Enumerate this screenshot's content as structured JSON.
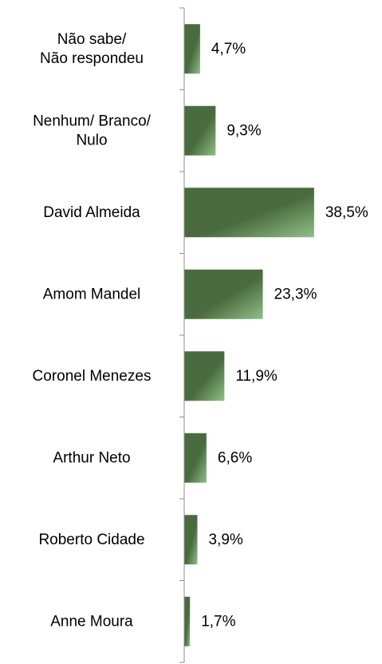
{
  "chart_data": {
    "type": "bar",
    "orientation": "horizontal",
    "categories": [
      [
        "Não sabe/",
        "Não respondeu"
      ],
      [
        "Nenhum/ Branco/",
        "Nulo"
      ],
      [
        "David Almeida"
      ],
      [
        "Amom Mandel"
      ],
      [
        "Coronel Menezes"
      ],
      [
        "Arthur Neto"
      ],
      [
        "Roberto Cidade"
      ],
      [
        "Anne Moura"
      ]
    ],
    "values": [
      4.7,
      9.3,
      38.5,
      23.3,
      11.9,
      6.6,
      3.9,
      1.7
    ],
    "value_labels": [
      "4,7%",
      "9,3%",
      "38,5%",
      "23,3%",
      "11,9%",
      "6,6%",
      "3,9%",
      "1,7%"
    ],
    "xlim": [
      0,
      45
    ],
    "grid": false,
    "legend": "none",
    "colors": {
      "bar_dark": "#4a6b3f",
      "bar_light": "#8fbf86",
      "axis": "#8c8c8c"
    }
  }
}
